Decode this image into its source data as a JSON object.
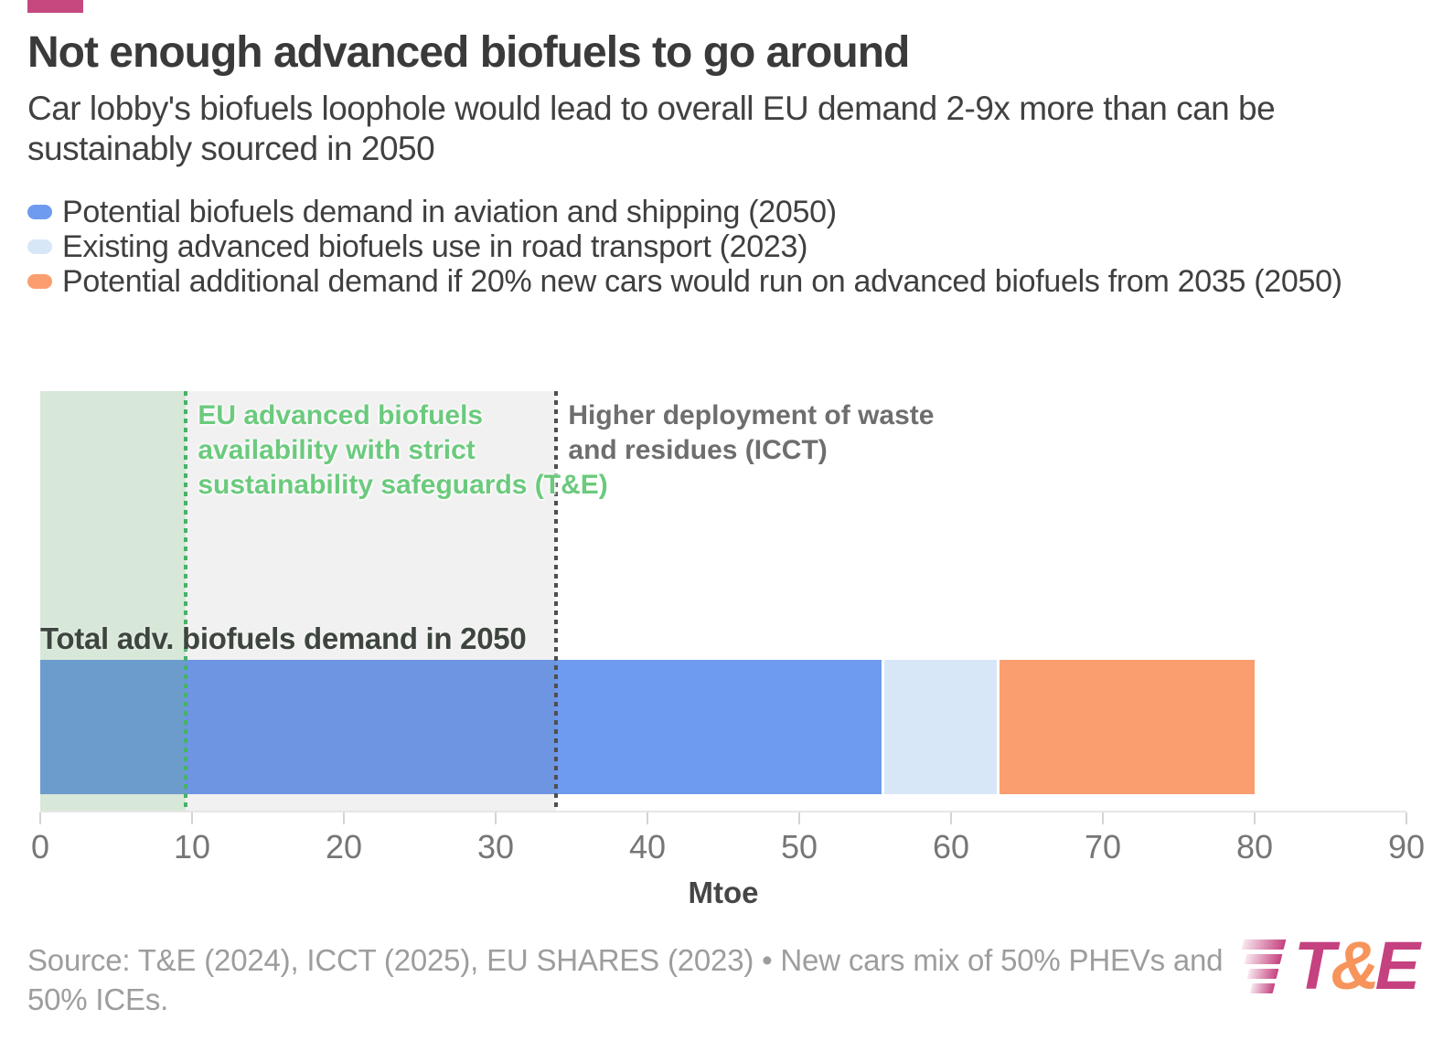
{
  "brand": {
    "accent_bar_color": "#c5487f"
  },
  "header": {
    "title": "Not enough advanced biofuels to go around",
    "subtitle": "Car lobby's biofuels loophole would lead to overall EU demand 2-9x more than can be sustainably sourced in 2050"
  },
  "legend": {
    "items": [
      {
        "label": "Potential biofuels demand in aviation and shipping (2050)",
        "color": "#6f9bef"
      },
      {
        "label": "Existing advanced biofuels use in road transport (2023)",
        "color": "#d8e7f8"
      },
      {
        "label": "Potential additional demand if 20% new cars would run on advanced biofuels from 2035 (2050)",
        "color": "#fa9e70"
      }
    ]
  },
  "chart_data": {
    "type": "bar",
    "orientation": "horizontal-stacked",
    "bar_label": "Total adv. biofuels demand in 2050",
    "categories": [
      "Total adv. biofuels demand in 2050"
    ],
    "series": [
      {
        "name": "Potential biofuels demand in aviation and shipping (2050)",
        "value": 55.4,
        "color": "#6f9bef"
      },
      {
        "name": "Existing advanced biofuels use in road transport (2023)",
        "value": 7.6,
        "color": "#d8e7f8"
      },
      {
        "name": "Potential additional demand if 20% new cars would run on advanced biofuels from 2035 (2050)",
        "value": 17.0,
        "color": "#fa9e70"
      }
    ],
    "total": 80,
    "xlabel": "Mtoe",
    "axis": {
      "min": 0,
      "max": 90,
      "ticks": [
        0,
        10,
        20,
        30,
        40,
        50,
        60,
        70,
        80,
        90
      ]
    },
    "grid": false,
    "legend_position": "top-left",
    "reference_regions": [
      {
        "label": "EU advanced biofuels availability with strict sustainability safeguards (T&E)",
        "annotation": "EU advanced biofuels\navailability with strict\nsustainability safeguards (T&E)",
        "value": 9.6,
        "fill": "rgba(102,187,106,0.18)",
        "line_color": "#47b269",
        "text_color": "#6bca7d"
      },
      {
        "label": "Higher deployment of waste and residues (ICCT)",
        "annotation": "Higher deployment of waste\nand residues (ICCT)",
        "value": 34,
        "fill": "rgba(90,90,90,0.085)",
        "line_color": "#4f4f4f",
        "text_color": "#6e6e6e"
      }
    ]
  },
  "footer": {
    "source": "Source: T&E (2024), ICCT (2025), EU SHARES (2023) • New cars mix of 50% PHEVs and 50% ICEs.",
    "logo": {
      "t": "T",
      "amp": "&",
      "e": "E",
      "pink": "#c5417f",
      "orange": "#f6945c"
    }
  }
}
